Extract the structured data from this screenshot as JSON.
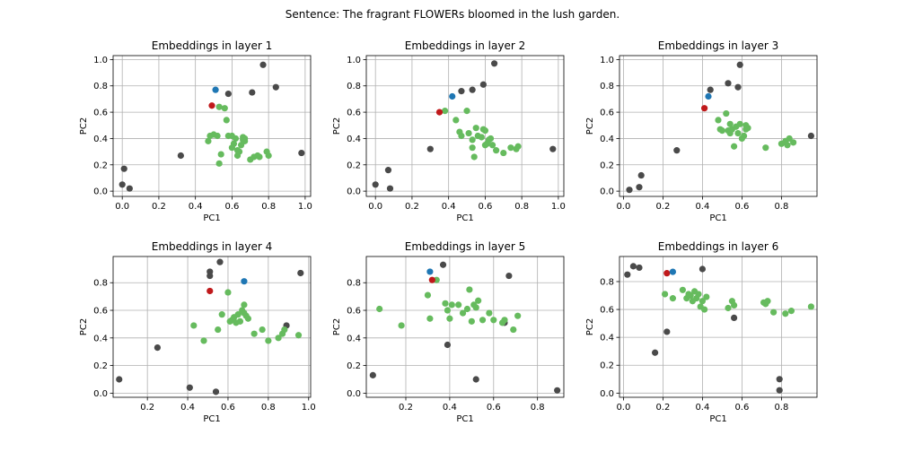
{
  "suptitle": "Sentence: The fragrant FLOWERs bloomed in the lush garden.",
  "colors": {
    "context": "#4a4a4a",
    "related": "#66bb5e",
    "target": "#c0191b",
    "query": "#1f77b4",
    "grid": "#b0b0b0",
    "axes": "#000000"
  },
  "chart_data": [
    {
      "type": "scatter",
      "title": "Embeddings in layer 1",
      "xlabel": "PC1",
      "ylabel": "PC2",
      "xlim": [
        -0.05,
        1.03
      ],
      "ylim": [
        -0.04,
        1.03
      ],
      "xticks": [
        0.0,
        0.2,
        0.4,
        0.6,
        0.8,
        1.0
      ],
      "xtick_labels": [
        "0.0",
        "0.2",
        "0.4",
        "0.6",
        "0.8",
        "1.0"
      ],
      "yticks": [
        0.0,
        0.2,
        0.4,
        0.6,
        0.8,
        1.0
      ],
      "ytick_labels": [
        "0.0",
        "0.2",
        "0.4",
        "0.6",
        "0.8",
        "1.0"
      ],
      "grid": true,
      "series": [
        {
          "group": "context",
          "x": [
            0.01,
            0.0,
            0.04,
            0.32,
            0.58,
            0.71,
            0.77,
            0.84,
            0.98
          ],
          "y": [
            0.17,
            0.05,
            0.02,
            0.27,
            0.74,
            0.75,
            0.96,
            0.79,
            0.29
          ]
        },
        {
          "group": "related",
          "x": [
            0.47,
            0.48,
            0.52,
            0.53,
            0.54,
            0.56,
            0.57,
            0.58,
            0.6,
            0.61,
            0.62,
            0.63,
            0.64,
            0.65,
            0.66,
            0.66,
            0.67,
            0.67,
            0.7,
            0.72,
            0.74,
            0.75,
            0.79,
            0.8,
            0.5,
            0.53,
            0.6,
            0.63
          ],
          "y": [
            0.38,
            0.42,
            0.42,
            0.21,
            0.28,
            0.63,
            0.54,
            0.42,
            0.33,
            0.36,
            0.4,
            0.27,
            0.3,
            0.35,
            0.39,
            0.41,
            0.38,
            0.4,
            0.24,
            0.26,
            0.27,
            0.26,
            0.3,
            0.27,
            0.43,
            0.64,
            0.42,
            0.31
          ]
        },
        {
          "group": "target",
          "x": [
            0.49
          ],
          "y": [
            0.65
          ]
        },
        {
          "group": "query",
          "x": [
            0.51
          ],
          "y": [
            0.77
          ]
        }
      ]
    },
    {
      "type": "scatter",
      "title": "Embeddings in layer 2",
      "xlabel": "PC1",
      "ylabel": "PC2",
      "xlim": [
        -0.05,
        1.03
      ],
      "ylim": [
        -0.04,
        1.03
      ],
      "xticks": [
        0.0,
        0.2,
        0.4,
        0.6,
        0.8,
        1.0
      ],
      "xtick_labels": [
        "0.0",
        "0.2",
        "0.4",
        "0.6",
        "0.8",
        "1.0"
      ],
      "yticks": [
        0.0,
        0.2,
        0.4,
        0.6,
        0.8,
        1.0
      ],
      "ytick_labels": [
        "0.0",
        "0.2",
        "0.4",
        "0.6",
        "0.8",
        "1.0"
      ],
      "grid": true,
      "series": [
        {
          "group": "context",
          "x": [
            0.0,
            0.07,
            0.08,
            0.3,
            0.47,
            0.53,
            0.59,
            0.65,
            0.97
          ],
          "y": [
            0.05,
            0.16,
            0.02,
            0.32,
            0.76,
            0.77,
            0.81,
            0.97,
            0.32
          ]
        },
        {
          "group": "related",
          "x": [
            0.38,
            0.44,
            0.46,
            0.47,
            0.5,
            0.51,
            0.53,
            0.53,
            0.54,
            0.55,
            0.56,
            0.58,
            0.59,
            0.6,
            0.61,
            0.62,
            0.63,
            0.64,
            0.66,
            0.7,
            0.74,
            0.77,
            0.78,
            0.6
          ],
          "y": [
            0.61,
            0.54,
            0.45,
            0.42,
            0.61,
            0.44,
            0.33,
            0.39,
            0.26,
            0.48,
            0.42,
            0.41,
            0.47,
            0.35,
            0.36,
            0.39,
            0.4,
            0.35,
            0.31,
            0.29,
            0.33,
            0.32,
            0.34,
            0.46
          ]
        },
        {
          "group": "target",
          "x": [
            0.35
          ],
          "y": [
            0.6
          ]
        },
        {
          "group": "query",
          "x": [
            0.42
          ],
          "y": [
            0.72
          ]
        }
      ]
    },
    {
      "type": "scatter",
      "title": "Embeddings in layer 3",
      "xlabel": "PC1",
      "ylabel": "PC2",
      "xlim": [
        -0.02,
        0.98
      ],
      "ylim": [
        -0.04,
        1.03
      ],
      "xticks": [
        0.0,
        0.2,
        0.4,
        0.6,
        0.8
      ],
      "xtick_labels": [
        "0.0",
        "0.2",
        "0.4",
        "0.6",
        "0.8"
      ],
      "yticks": [
        0.0,
        0.2,
        0.4,
        0.6,
        0.8,
        1.0
      ],
      "ytick_labels": [
        "0.0",
        "0.2",
        "0.4",
        "0.6",
        "0.8",
        "1.0"
      ],
      "grid": true,
      "series": [
        {
          "group": "context",
          "x": [
            0.03,
            0.08,
            0.09,
            0.27,
            0.44,
            0.53,
            0.58,
            0.59,
            0.95
          ],
          "y": [
            0.01,
            0.03,
            0.12,
            0.31,
            0.77,
            0.82,
            0.79,
            0.96,
            0.42
          ]
        },
        {
          "group": "related",
          "x": [
            0.48,
            0.49,
            0.5,
            0.52,
            0.53,
            0.54,
            0.54,
            0.55,
            0.56,
            0.57,
            0.58,
            0.59,
            0.6,
            0.61,
            0.62,
            0.63,
            0.72,
            0.8,
            0.82,
            0.83,
            0.84,
            0.86,
            0.62
          ],
          "y": [
            0.54,
            0.47,
            0.46,
            0.59,
            0.46,
            0.51,
            0.44,
            0.47,
            0.34,
            0.49,
            0.44,
            0.51,
            0.4,
            0.42,
            0.5,
            0.48,
            0.33,
            0.36,
            0.38,
            0.35,
            0.4,
            0.37,
            0.47
          ]
        },
        {
          "group": "target",
          "x": [
            0.41
          ],
          "y": [
            0.63
          ]
        },
        {
          "group": "query",
          "x": [
            0.43
          ],
          "y": [
            0.72
          ]
        }
      ]
    },
    {
      "type": "scatter",
      "title": "Embeddings in layer 4",
      "xlabel": "PC1",
      "ylabel": "PC2",
      "xlim": [
        0.03,
        1.01
      ],
      "ylim": [
        -0.03,
        0.99
      ],
      "xticks": [
        0.2,
        0.4,
        0.6,
        0.8,
        1.0
      ],
      "xtick_labels": [
        "0.2",
        "0.4",
        "0.6",
        "0.8",
        "1.0"
      ],
      "yticks": [
        0.0,
        0.2,
        0.4,
        0.6,
        0.8
      ],
      "ytick_labels": [
        "0.0",
        "0.2",
        "0.4",
        "0.6",
        "0.8"
      ],
      "grid": true,
      "series": [
        {
          "group": "context",
          "x": [
            0.06,
            0.25,
            0.41,
            0.51,
            0.51,
            0.54,
            0.56,
            0.89,
            0.96
          ],
          "y": [
            0.1,
            0.33,
            0.04,
            0.88,
            0.85,
            0.01,
            0.95,
            0.49,
            0.87
          ]
        },
        {
          "group": "related",
          "x": [
            0.43,
            0.48,
            0.55,
            0.57,
            0.6,
            0.62,
            0.63,
            0.64,
            0.65,
            0.66,
            0.67,
            0.68,
            0.69,
            0.7,
            0.73,
            0.77,
            0.8,
            0.85,
            0.87,
            0.88,
            0.95,
            0.61,
            0.68
          ],
          "y": [
            0.49,
            0.38,
            0.46,
            0.57,
            0.73,
            0.53,
            0.55,
            0.51,
            0.57,
            0.52,
            0.6,
            0.64,
            0.56,
            0.54,
            0.43,
            0.46,
            0.38,
            0.4,
            0.43,
            0.46,
            0.42,
            0.52,
            0.58
          ]
        },
        {
          "group": "target",
          "x": [
            0.51
          ],
          "y": [
            0.74
          ]
        },
        {
          "group": "query",
          "x": [
            0.68
          ],
          "y": [
            0.81
          ]
        }
      ]
    },
    {
      "type": "scatter",
      "title": "Embeddings in layer 5",
      "xlabel": "PC1",
      "ylabel": "PC2",
      "xlim": [
        0.02,
        0.92
      ],
      "ylim": [
        -0.03,
        0.99
      ],
      "xticks": [
        0.2,
        0.4,
        0.6,
        0.8
      ],
      "xtick_labels": [
        "0.2",
        "0.4",
        "0.6",
        "0.8"
      ],
      "yticks": [
        0.0,
        0.2,
        0.4,
        0.6,
        0.8
      ],
      "ytick_labels": [
        "0.0",
        "0.2",
        "0.4",
        "0.6",
        "0.8"
      ],
      "grid": true,
      "series": [
        {
          "group": "context",
          "x": [
            0.05,
            0.37,
            0.39,
            0.52,
            0.65,
            0.67,
            0.89
          ],
          "y": [
            0.13,
            0.93,
            0.35,
            0.1,
            0.51,
            0.85,
            0.02
          ]
        },
        {
          "group": "related",
          "x": [
            0.08,
            0.18,
            0.3,
            0.31,
            0.34,
            0.38,
            0.39,
            0.4,
            0.41,
            0.44,
            0.46,
            0.48,
            0.49,
            0.5,
            0.51,
            0.52,
            0.53,
            0.55,
            0.58,
            0.6,
            0.64,
            0.65,
            0.69,
            0.71
          ],
          "y": [
            0.61,
            0.49,
            0.71,
            0.54,
            0.82,
            0.65,
            0.6,
            0.54,
            0.64,
            0.64,
            0.58,
            0.61,
            0.75,
            0.52,
            0.64,
            0.62,
            0.67,
            0.53,
            0.58,
            0.53,
            0.51,
            0.53,
            0.46,
            0.56
          ]
        },
        {
          "group": "target",
          "x": [
            0.32
          ],
          "y": [
            0.82
          ]
        },
        {
          "group": "query",
          "x": [
            0.31
          ],
          "y": [
            0.88
          ]
        }
      ]
    },
    {
      "type": "scatter",
      "title": "Embeddings in layer 6",
      "xlabel": "PC1",
      "ylabel": "PC2",
      "xlim": [
        -0.02,
        0.98
      ],
      "ylim": [
        -0.03,
        0.98
      ],
      "xticks": [
        0.0,
        0.2,
        0.4,
        0.6,
        0.8
      ],
      "xtick_labels": [
        "0.0",
        "0.2",
        "0.4",
        "0.6",
        "0.8"
      ],
      "yticks": [
        0.0,
        0.2,
        0.4,
        0.6,
        0.8
      ],
      "ytick_labels": [
        "0.0",
        "0.2",
        "0.4",
        "0.6",
        "0.8"
      ],
      "grid": true,
      "series": [
        {
          "group": "context",
          "x": [
            0.02,
            0.05,
            0.08,
            0.16,
            0.22,
            0.4,
            0.56,
            0.79,
            0.79
          ],
          "y": [
            0.85,
            0.91,
            0.9,
            0.29,
            0.44,
            0.89,
            0.54,
            0.1,
            0.02
          ]
        },
        {
          "group": "related",
          "x": [
            0.21,
            0.25,
            0.3,
            0.32,
            0.33,
            0.34,
            0.35,
            0.36,
            0.37,
            0.38,
            0.39,
            0.4,
            0.41,
            0.42,
            0.53,
            0.55,
            0.56,
            0.71,
            0.72,
            0.73,
            0.76,
            0.82,
            0.85,
            0.95
          ],
          "y": [
            0.71,
            0.68,
            0.74,
            0.68,
            0.71,
            0.7,
            0.66,
            0.73,
            0.68,
            0.71,
            0.62,
            0.66,
            0.6,
            0.69,
            0.61,
            0.66,
            0.63,
            0.65,
            0.64,
            0.66,
            0.58,
            0.57,
            0.59,
            0.62
          ]
        },
        {
          "group": "target",
          "x": [
            0.22
          ],
          "y": [
            0.86
          ]
        },
        {
          "group": "query",
          "x": [
            0.25
          ],
          "y": [
            0.87
          ]
        }
      ]
    }
  ]
}
